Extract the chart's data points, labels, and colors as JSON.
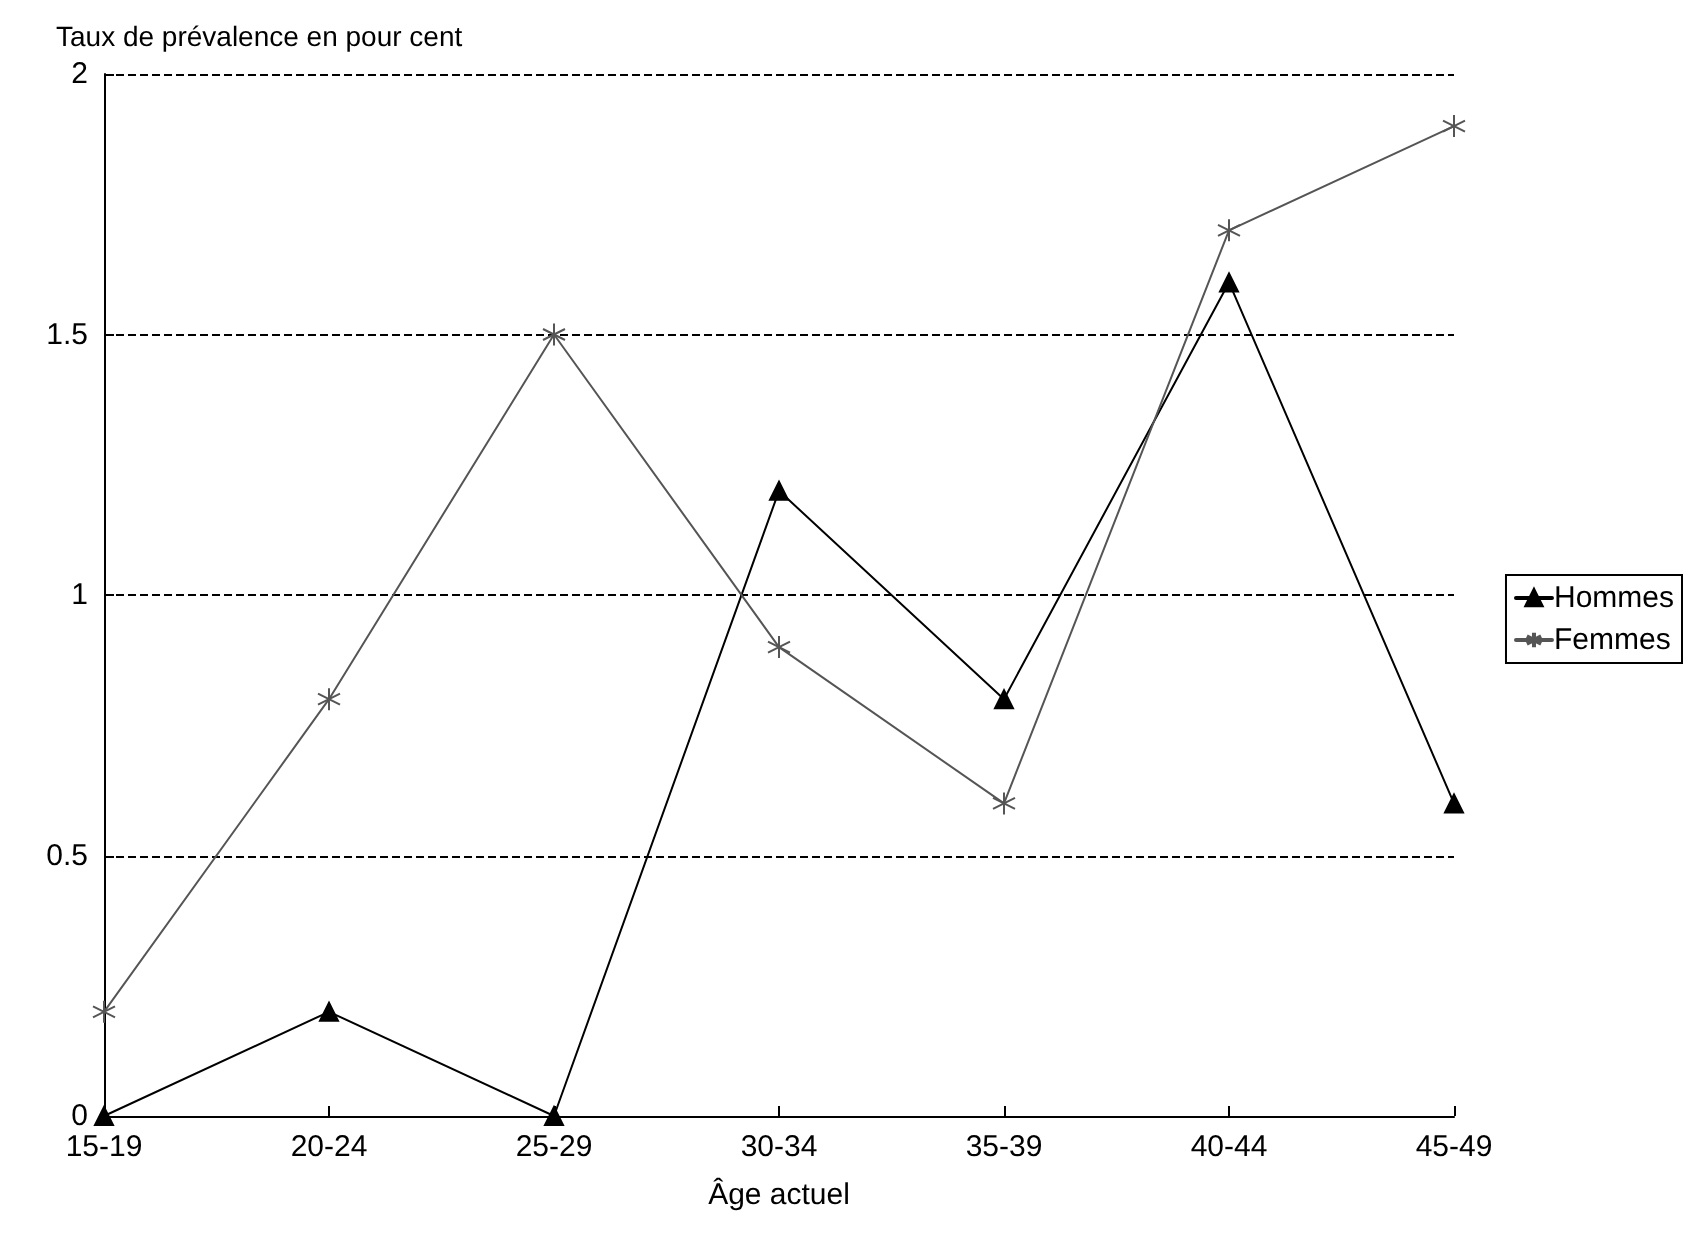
{
  "chart_data": {
    "type": "line",
    "ylabel": "Taux de prévalence en pour cent",
    "xlabel": "Âge actuel",
    "categories": [
      "15-19",
      "20-24",
      "25-29",
      "30-34",
      "35-39",
      "40-44",
      "45-49"
    ],
    "series": [
      {
        "name": "Hommes",
        "color": "#000000",
        "marker": "triangle",
        "values": [
          0,
          0.2,
          0,
          1.2,
          0.8,
          1.6,
          0.6
        ]
      },
      {
        "name": "Femmes",
        "color": "#555555",
        "marker": "cross",
        "values": [
          0.2,
          0.8,
          1.5,
          0.9,
          0.6,
          1.7,
          1.9
        ]
      }
    ],
    "ylim": [
      0,
      2
    ],
    "yticks": [
      0,
      0.5,
      1,
      1.5,
      2
    ],
    "grid": "y",
    "legend": "right",
    "line_style": "solid"
  }
}
